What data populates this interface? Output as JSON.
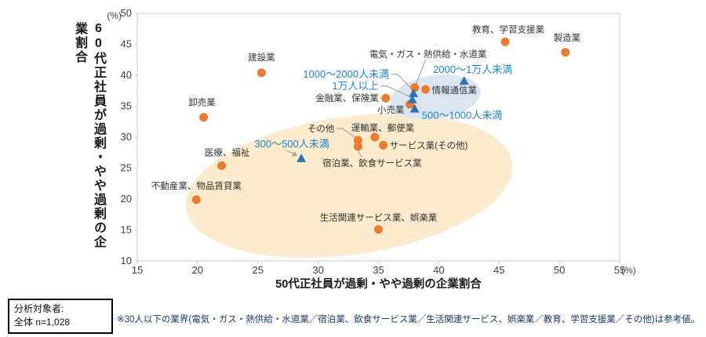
{
  "chart_data": {
    "type": "scatter",
    "title": "",
    "xlabel": "50代正社員が過剰・やや過剰の企業割合",
    "ylabel": "60代正社員が過剰・やや過剰の企業割合",
    "x_unit": "(%)",
    "y_unit": "(%)",
    "xlim": [
      15,
      55
    ],
    "ylim": [
      10,
      50
    ],
    "xticks": [
      15,
      20,
      25,
      30,
      35,
      40,
      45,
      50,
      55
    ],
    "yticks": [
      50,
      45,
      40,
      35,
      30,
      25,
      20,
      15,
      10
    ],
    "grid": false,
    "legend_position": "none",
    "colors": {
      "industry_marker": "#EE7B2D",
      "size_marker": "#2E74B5",
      "size_label_text": "#1E86C8",
      "industry_label_text": "#333333",
      "leader_line": "#A6A6A6",
      "cream_ellipse": "#FCEBCC",
      "blue_ellipse": "#DBE5F0",
      "axis_border": "#C9C9C9",
      "tick_text": "#404040"
    },
    "ellipses": [
      {
        "name": "cream-group-ellipse",
        "cx": 270,
        "cy": 220,
        "rx": 210,
        "ry": 88,
        "rotate": -8,
        "color_key": "cream_ellipse"
      },
      {
        "name": "blue-group-ellipse",
        "cx": 380,
        "cy": 107,
        "rx": 58,
        "ry": 28,
        "rotate": -8,
        "color_key": "blue_ellipse"
      }
    ],
    "series": [
      {
        "name": "業種",
        "marker": "circle",
        "points": [
          {
            "label": "建設業",
            "x": 25.3,
            "y": 40.4,
            "ldx": 0,
            "ldy": -20,
            "anchor": "middle"
          },
          {
            "label": "卸売業",
            "x": 20.5,
            "y": 33.2,
            "ldx": -2,
            "ldy": -19,
            "anchor": "middle"
          },
          {
            "label": "医療、福祉",
            "x": 22.0,
            "y": 25.4,
            "ldx": 7,
            "ldy": -17,
            "anchor": "middle"
          },
          {
            "label": "不動産業、物品賃貸業",
            "x": 19.9,
            "y": 19.9,
            "ldx": 0,
            "ldy": -18,
            "anchor": "middle"
          },
          {
            "label": "教育、学習支援業",
            "x": 45.5,
            "y": 45.4,
            "ldx": 4,
            "ldy": -16,
            "anchor": "middle"
          },
          {
            "label": "製造業",
            "x": 50.5,
            "y": 43.7,
            "ldx": 2,
            "ldy": -19,
            "anchor": "middle"
          },
          {
            "label": "電気・ガス・熱供給・水道業",
            "x": 38.0,
            "y": 38.0,
            "ldx": 17,
            "ldy": -43,
            "anchor": "middle",
            "leader": [
              [
                14,
                -36
              ],
              [
                2,
                -5
              ]
            ]
          },
          {
            "label": "情報通信業",
            "x": 38.9,
            "y": 37.7,
            "ldx": 8,
            "ldy": 1,
            "anchor": "start"
          },
          {
            "label": "金融業、保険業",
            "x": 35.6,
            "y": 36.3,
            "ldx": -9,
            "ldy": 0,
            "anchor": "end",
            "leader": [
              [
                -7,
                0
              ],
              [
                -3,
                0
              ]
            ]
          },
          {
            "label": "小売業",
            "x": 37.6,
            "y": 35.3,
            "ldx": -7,
            "ldy": 7,
            "anchor": "end"
          },
          {
            "label": "その他",
            "x": 33.3,
            "y": 29.5,
            "ldx": -30,
            "ldy": -15,
            "anchor": "end",
            "leader": [
              [
                -27,
                -15
              ],
              [
                -20,
                -15
              ],
              [
                -3,
                -3
              ]
            ]
          },
          {
            "label": "運輸業、郵便業",
            "x": 34.7,
            "y": 30.0,
            "ldx": 10,
            "ldy": -12,
            "anchor": "middle"
          },
          {
            "label": "サービス業(その他)",
            "x": 35.4,
            "y": 28.7,
            "ldx": 8,
            "ldy": 0,
            "anchor": "start"
          },
          {
            "label": "宿泊業、飲食サービス業",
            "x": 33.3,
            "y": 28.5,
            "ldx": 18,
            "ldy": 21,
            "anchor": "middle",
            "leader": [
              [
                0,
                6
              ],
              [
                5,
                14
              ]
            ]
          },
          {
            "label": "生活関連サービス業、娯楽業",
            "x": 35.0,
            "y": 15.1,
            "ldx": 0,
            "ldy": -15,
            "anchor": "middle"
          }
        ]
      },
      {
        "name": "従業員規模",
        "marker": "triangle",
        "points": [
          {
            "label": "2000〜1万人未満",
            "x": 42.1,
            "y": 39.1,
            "ldx": 11,
            "ldy": -14,
            "anchor": "middle"
          },
          {
            "label": "1000〜2000人未満",
            "x": 37.9,
            "y": 37.1,
            "ldx": -31,
            "ldy": -24,
            "anchor": "end",
            "leader": [
              [
                -28,
                -24
              ],
              [
                -20,
                -24
              ],
              [
                -3,
                -6
              ]
            ]
          },
          {
            "label": "1万人以上",
            "x": 37.8,
            "y": 36.1,
            "ldx": -43,
            "ldy": -17,
            "anchor": "end",
            "leader": [
              [
                -40,
                -17
              ],
              [
                -32,
                -17
              ],
              [
                -4,
                -4
              ]
            ]
          },
          {
            "label": "500〜1000人未満",
            "x": 38.0,
            "y": 34.6,
            "ldx": 9,
            "ldy": 9,
            "anchor": "start"
          },
          {
            "label": "300〜500人未満",
            "x": 28.6,
            "y": 26.6,
            "ldx": -12,
            "ldy": -18,
            "anchor": "middle",
            "leader": [
              [
                -19,
                -10
              ],
              [
                -5,
                -3
              ]
            ],
            "arrow": true
          }
        ]
      }
    ]
  },
  "annotations": {
    "analysis_box_line1": "分析対象者:",
    "analysis_box_line2": "全体 n=1,028",
    "footnote": "※30人以下の業界(電気・ガス・熱供給・水道業／宿泊業、飲食サービス業／生活関連サービス、娯楽業／教育、学習支援業／その他)は参考値。"
  }
}
